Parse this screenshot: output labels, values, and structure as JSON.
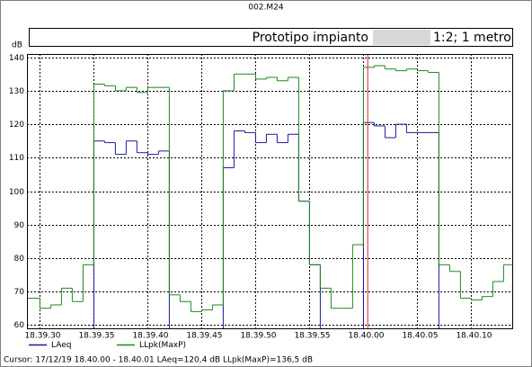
{
  "chart_data": {
    "type": "line",
    "title": "002.M24",
    "header_left": "Prototipo impianto",
    "header_right": "1:2; 1 metro",
    "y_label": "dB",
    "x": [
      -1,
      0,
      1,
      2,
      3,
      4,
      5,
      6,
      7,
      8,
      9,
      10,
      11,
      12,
      13,
      14,
      15,
      16,
      17,
      18,
      19,
      20,
      21,
      22,
      23,
      24,
      25,
      26,
      27,
      28,
      29,
      30,
      31,
      32,
      33,
      34,
      35,
      36,
      37,
      38,
      39,
      40,
      41,
      42,
      43
    ],
    "xlim": [
      -1.2,
      43.8
    ],
    "xticks": [
      {
        "value": 0,
        "label": "18.39.30"
      },
      {
        "value": 5,
        "label": "18.39.35"
      },
      {
        "value": 10,
        "label": "18.39.40"
      },
      {
        "value": 15,
        "label": "18.39.45"
      },
      {
        "value": 20,
        "label": "18.39.50"
      },
      {
        "value": 25,
        "label": "18.39.55"
      },
      {
        "value": 30,
        "label": "18.40.00"
      },
      {
        "value": 35,
        "label": "18.40.05"
      },
      {
        "value": 40,
        "label": "18.40.10"
      }
    ],
    "ylim": [
      59,
      141
    ],
    "yticks": [
      60,
      70,
      80,
      90,
      100,
      110,
      120,
      130,
      140
    ],
    "grid": true,
    "series": [
      {
        "name": "LAeq",
        "color": "#1a1aa0",
        "values": [
          null,
          null,
          null,
          null,
          null,
          null,
          115,
          114.5,
          111,
          115,
          111.5,
          111,
          112,
          null,
          null,
          null,
          null,
          null,
          107,
          118,
          117.5,
          114.5,
          117,
          114.5,
          117,
          97,
          78,
          null,
          null,
          null,
          null,
          120.5,
          119.5,
          116,
          120,
          117.5,
          117.5,
          117.5,
          null,
          null,
          null,
          null,
          null,
          null,
          null
        ]
      },
      {
        "name": "LLpk(MaxP)",
        "color": "#1a8a1a",
        "values": [
          68,
          65,
          66,
          71,
          67,
          78,
          132,
          131.5,
          130,
          131,
          129.5,
          131,
          131,
          69,
          67,
          64,
          64.5,
          66,
          130,
          135,
          135,
          133.5,
          134,
          133,
          134,
          97,
          78,
          71,
          65,
          65,
          84,
          137,
          137.5,
          136.5,
          136,
          136.5,
          136,
          135.5,
          78,
          76,
          68,
          67.5,
          68.5,
          73,
          78
        ]
      }
    ],
    "cursor_x": 30.4,
    "cursor_color": "#e02020",
    "cursor_text": "Cursor: 17/12/19 18.40.00 - 18.40.01  LAeq=120,4 dB  LLpk(MaxP)=136,5 dB"
  }
}
